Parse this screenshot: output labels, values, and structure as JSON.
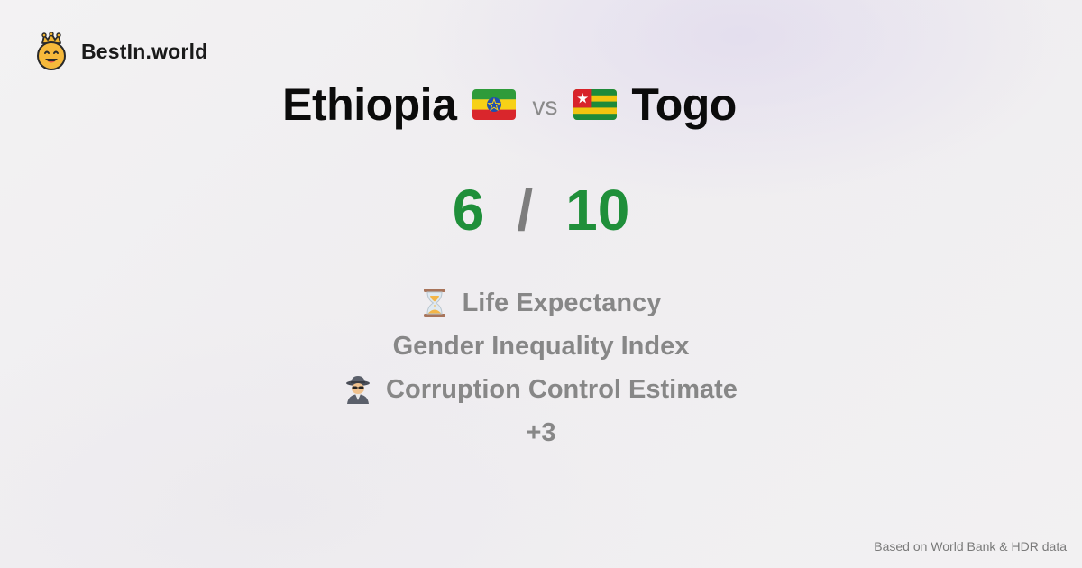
{
  "brand": {
    "name": "BestIn.world",
    "icon": "crown-smiley-icon"
  },
  "comparison": {
    "left_country": "Ethiopia",
    "left_flag": "ethiopia-flag-icon",
    "vs_label": "vs",
    "right_country": "Togo",
    "right_flag": "togo-flag-icon"
  },
  "score": {
    "left": "6",
    "separator": "/",
    "right": "10",
    "color": "#1f8f3a"
  },
  "metrics": [
    {
      "label": "Life Expectancy",
      "icon": "hourglass-icon"
    },
    {
      "label": "Gender Inequality Index",
      "icon": ""
    },
    {
      "label": "Corruption Control Estimate",
      "icon": "detective-icon"
    }
  ],
  "more_label": "+3",
  "footer": {
    "source": "Based on World Bank & HDR data"
  }
}
